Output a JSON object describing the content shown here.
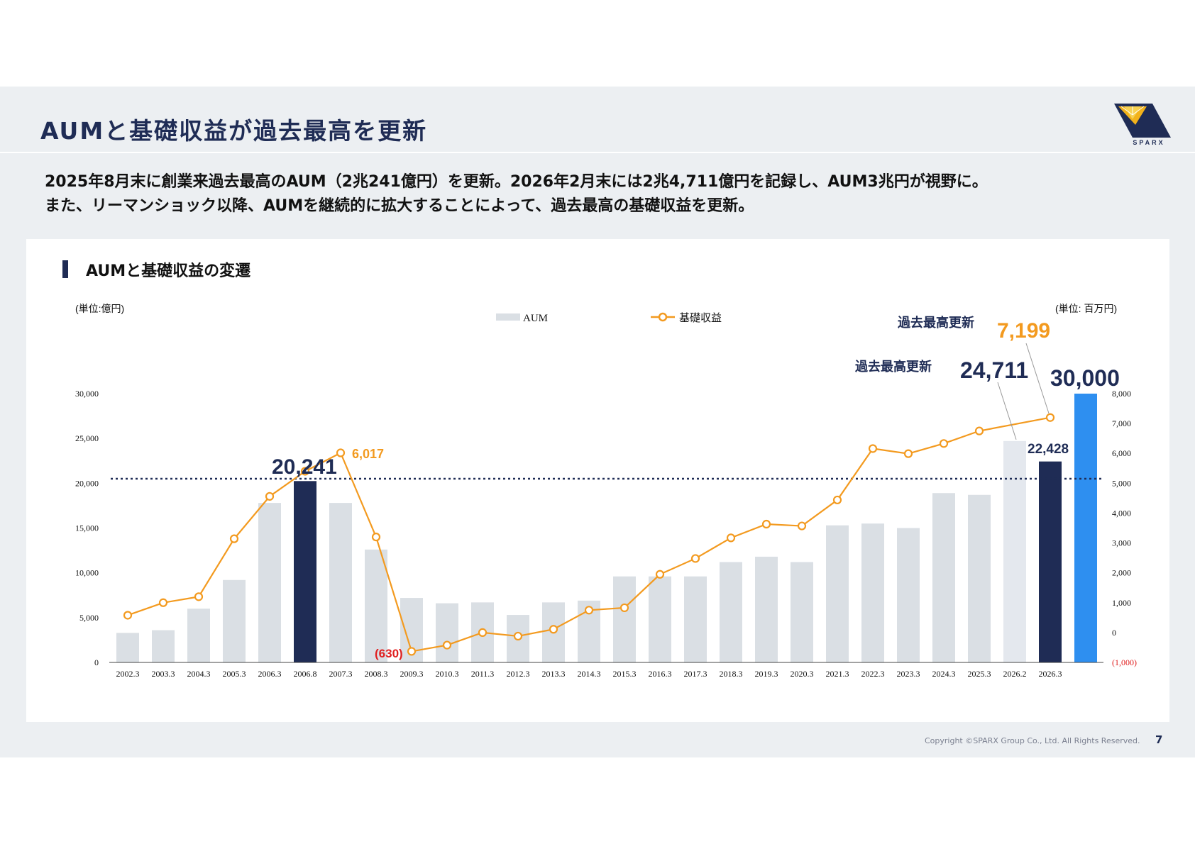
{
  "header": {
    "title": "AUMと基礎収益が過去最高を更新",
    "logo_text": "SPARX"
  },
  "lead": {
    "line1": "2025年8月末に創業来過去最高のAUM（2兆241億円）を更新。2026年2月末には2兆4,711億円を記録し、AUM3兆円が視野に。",
    "line2": "また、リーマンショック以降、AUMを継続的に拡大することによって、過去最高の基礎収益を更新。"
  },
  "panel": {
    "section_title": "AUMと基礎収益の変遷"
  },
  "chart_data": {
    "type": "bar+line",
    "title": "AUMと基礎収益の変遷",
    "categories": [
      "2002.3",
      "2003.3",
      "2004.3",
      "2005.3",
      "2006.3",
      "2006.8",
      "2007.3",
      "2008.3",
      "2009.3",
      "2010.3",
      "2011.3",
      "2012.3",
      "2013.3",
      "2014.3",
      "2015.3",
      "2016.3",
      "2017.3",
      "2018.3",
      "2019.3",
      "2020.3",
      "2021.3",
      "2022.3",
      "2023.3",
      "2024.3",
      "2025.3",
      "2026.2",
      "2026.3"
    ],
    "extra_category": "",
    "left_axis": {
      "unit_label": "(単位:億円)",
      "min": 0,
      "max": 30000,
      "ticks": [
        0,
        5000,
        10000,
        15000,
        20000,
        25000,
        30000
      ],
      "tick_labels": [
        "0",
        "5,000",
        "10,000",
        "15,000",
        "20,000",
        "25,000",
        "30,000"
      ]
    },
    "right_axis": {
      "unit_label": "(単位: 百万円)",
      "min": -1000,
      "max": 8000,
      "ticks": [
        -1000,
        0,
        1000,
        2000,
        3000,
        4000,
        5000,
        6000,
        7000,
        8000
      ],
      "tick_labels": [
        "(1,000)",
        "0",
        "1,000",
        "2,000",
        "3,000",
        "4,000",
        "5,000",
        "6,000",
        "7,000",
        "8,000"
      ]
    },
    "series": [
      {
        "name": "AUM",
        "axis": "left",
        "kind": "bar",
        "values": [
          3300,
          3600,
          6000,
          9200,
          17800,
          20241,
          17800,
          12600,
          7200,
          6600,
          6700,
          5300,
          6700,
          6900,
          9600,
          9600,
          9600,
          11200,
          11800,
          11200,
          15300,
          15500,
          15000,
          18900,
          18700,
          24711,
          22428
        ],
        "extra_value": 30000
      },
      {
        "name": "基礎収益",
        "axis": "right",
        "kind": "line",
        "values": [
          580,
          1000,
          1200,
          3140,
          4560,
          5400,
          6017,
          3200,
          -630,
          -420,
          0,
          -120,
          110,
          750,
          830,
          1950,
          2480,
          3170,
          3630,
          3570,
          4440,
          6160,
          5990,
          6330,
          6750,
          null,
          7199
        ]
      }
    ],
    "reference_line": {
      "value": 20500,
      "axis": "left",
      "style": "dotted"
    },
    "highlights": {
      "navy_bars": [
        5,
        26
      ],
      "light_bars": [
        25
      ],
      "blue_extra": true
    },
    "annotations": {
      "aum_2006": "20,241",
      "income_2007": "6,017",
      "income_2009": "(630)",
      "record_label": "過去最高更新",
      "aum_2026_2": "24,711",
      "income_2026": "7,199",
      "aum_2026_3": "22,428",
      "aum_target": "30,000"
    },
    "colors": {
      "light_bar": "#dadfe4",
      "navy_bar": "#1f2c55",
      "blue_bar": "#2e8ff0",
      "line": "#f39a1f",
      "negative": "#e02020",
      "reference": "#1f2c55"
    },
    "legend_position": "top-center",
    "grid": false
  },
  "footer": {
    "copyright": "Copyright ©SPARX Group Co., Ltd. All Rights Reserved.",
    "page": "7"
  }
}
